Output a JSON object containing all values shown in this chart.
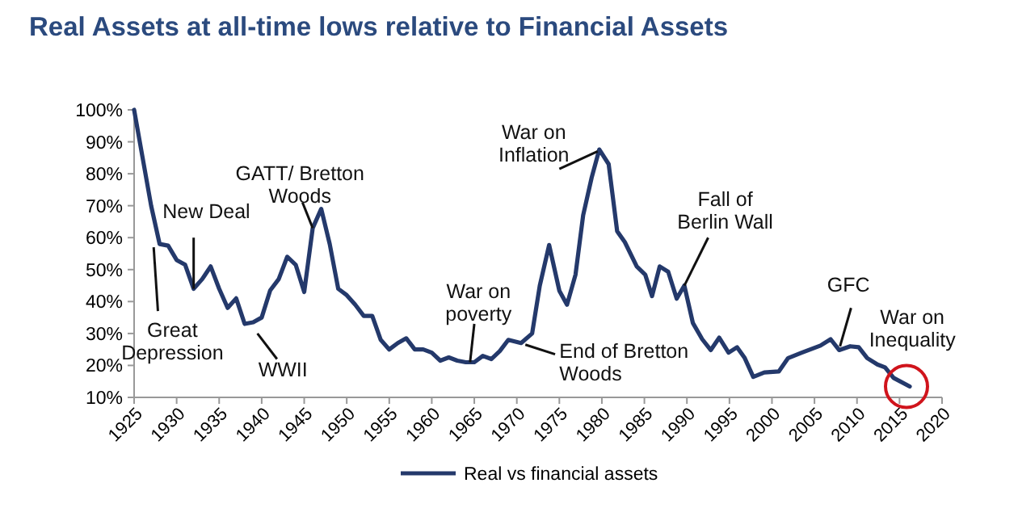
{
  "chart_data": {
    "type": "line",
    "title": "Real Assets at all-time lows relative to Financial Assets",
    "xlim": [
      1925,
      2020
    ],
    "xticks": [
      1925,
      1930,
      1935,
      1940,
      1945,
      1950,
      1955,
      1960,
      1965,
      1970,
      1975,
      1980,
      1985,
      1990,
      1995,
      2000,
      2005,
      2010,
      2015,
      2020
    ],
    "ylim": [
      10,
      100
    ],
    "yticks": [
      {
        "value": 10,
        "label": "10%"
      },
      {
        "value": 20,
        "label": "20%"
      },
      {
        "value": 30,
        "label": "30%"
      },
      {
        "value": 40,
        "label": "40%"
      },
      {
        "value": 50,
        "label": "50%"
      },
      {
        "value": 60,
        "label": "60%"
      },
      {
        "value": 70,
        "label": "70%"
      },
      {
        "value": 80,
        "label": "80%"
      },
      {
        "value": 90,
        "label": "90%"
      },
      {
        "value": 100,
        "label": "100%"
      }
    ],
    "grid": false,
    "legend": "bottom",
    "marker": "none",
    "line_style": "solid",
    "series": [
      {
        "name": "Real vs financial assets",
        "color": "#24396b",
        "x": [
          1925,
          1926,
          1927,
          1928,
          1929,
          1930,
          1931,
          1932,
          1933,
          1934,
          1935,
          1936,
          1937,
          1938,
          1939,
          1940,
          1941,
          1942,
          1943,
          1944,
          1945,
          1946,
          1947,
          1948,
          1949,
          1950,
          1951,
          1952,
          1953,
          1954,
          1955,
          1956,
          1957,
          1958,
          1959,
          1960,
          1961,
          1962,
          1963,
          1964,
          1965,
          1966,
          1967,
          1968,
          1969,
          1970.5,
          1971.8,
          1972.7,
          1973.8,
          1975,
          1975.9,
          1976.9,
          1977.8,
          1978.8,
          1979.7,
          1980.8,
          1981.8,
          1982.7,
          1984.1,
          1985.1,
          1985.9,
          1986.8,
          1987.8,
          1988.8,
          1989.7,
          1990.7,
          1991.8,
          1992.8,
          1993.8,
          1994.9,
          1995.9,
          1996.8,
          1997.8,
          1999.1,
          2000.8,
          2001.9,
          2003.5,
          2005.7,
          2006.9,
          2007.9,
          2009.2,
          2010.2,
          2011.2,
          2012.4,
          2013.3,
          2014.3,
          2016.2
        ],
        "values": [
          100,
          85,
          70,
          58,
          57.5,
          53,
          51.5,
          44,
          47,
          51,
          44,
          38,
          41,
          33,
          33.5,
          35,
          43.5,
          47,
          54,
          51.5,
          43,
          63,
          69,
          58,
          44,
          42,
          39,
          35.5,
          35.5,
          28,
          25,
          27,
          28.5,
          25,
          25,
          24,
          21.5,
          22.5,
          21.5,
          21,
          21,
          23,
          22,
          24.5,
          28,
          27,
          30,
          45,
          57.7,
          43.4,
          39,
          48.4,
          67,
          78.8,
          87.6,
          83,
          62,
          58.6,
          51,
          48.4,
          41.7,
          51,
          49.3,
          40.9,
          45,
          33.3,
          28.2,
          24.8,
          28.7,
          24,
          25.7,
          22.3,
          16.4,
          17.8,
          18.1,
          22.3,
          24,
          26.2,
          28.2,
          24.8,
          26,
          25.7,
          22.3,
          20.3,
          19.4,
          16.1,
          13.4
        ]
      }
    ],
    "annotations": [
      {
        "text": "New Deal",
        "x": 1932,
        "y": 44
      },
      {
        "text": "Great Depression",
        "x": 1927.5,
        "y": 57
      },
      {
        "text": "GATT/ Bretton Woods",
        "x": 1946,
        "y": 63
      },
      {
        "text": "WWII",
        "x": 1939,
        "y": 31
      },
      {
        "text": "War on poverty",
        "x": 1964.5,
        "y": 21
      },
      {
        "text": "End of Bretton Woods",
        "x": 1970.5,
        "y": 27
      },
      {
        "text": "War on Inflation",
        "x": 1979.5,
        "y": 87
      },
      {
        "text": "Fall of Berlin Wall",
        "x": 1989.7,
        "y": 45
      },
      {
        "text": "GFC",
        "x": 2008,
        "y": 26
      },
      {
        "text": "War on Inequality",
        "x": 2016,
        "y": 14
      }
    ]
  }
}
